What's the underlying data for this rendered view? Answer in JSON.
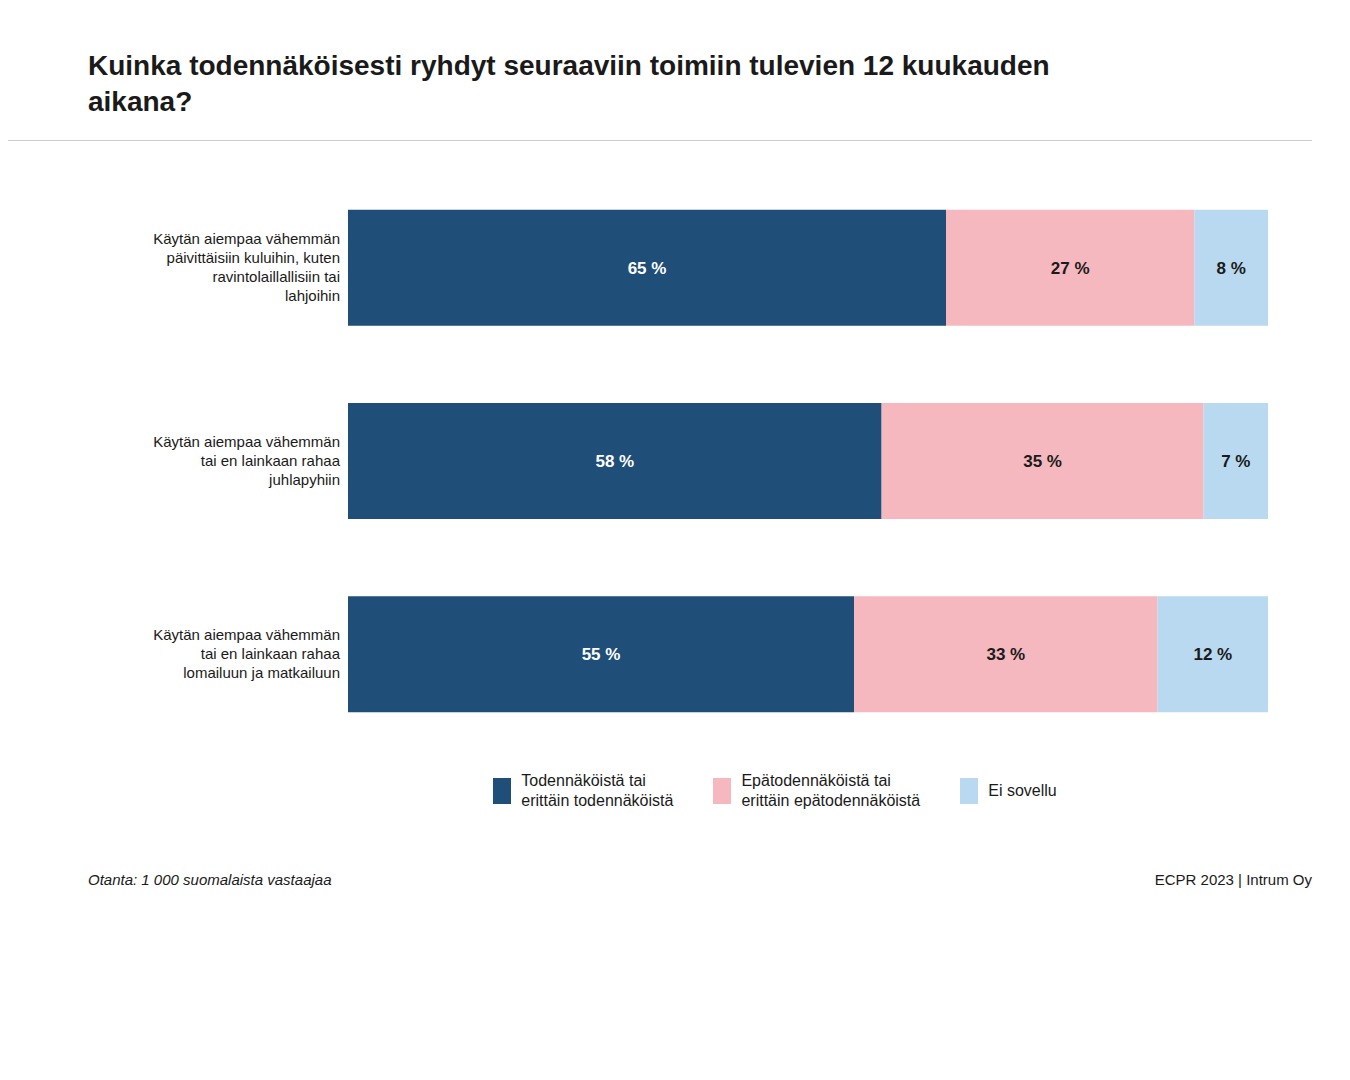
{
  "chart_data": {
    "type": "bar",
    "orientation": "horizontal",
    "stacked": true,
    "title": "Kuinka todennäköisesti ryhdyt seuraaviin toimiin tulevien 12 kuukauden\naikana?",
    "categories": [
      "Käytän aiempaa vähemmän\npäivittäisiin kuluihin, kuten\nravintolaillallisiin tai\nlahjoihin",
      "Käytän aiempaa vähemmän\ntai en lainkaan rahaa\njuhlapyhiin",
      "Käytän aiempaa vähemmän\ntai en lainkaan rahaa\nlomailuun ja matkailuun"
    ],
    "series": [
      {
        "name": "Todennäköistä tai\nerittäin todennäköistä",
        "color": "#1f4e79",
        "values": [
          65,
          58,
          55
        ],
        "value_labels": [
          "65 %",
          "58 %",
          "55 %"
        ]
      },
      {
        "name": "Epätodennäköistä tai\nerittäin epätodennäköistä",
        "color": "#f4b8be",
        "values": [
          27,
          35,
          33
        ],
        "value_labels": [
          "27 %",
          "35 %",
          "33 %"
        ]
      },
      {
        "name": "Ei sovellu",
        "color": "#b8d9f0",
        "values": [
          8,
          7,
          12
        ],
        "value_labels": [
          "8 %",
          "7 %",
          "12 %"
        ]
      }
    ],
    "xlim": [
      0,
      100
    ],
    "data_labels": true,
    "tick_labels": "y",
    "grid": false,
    "legend": "bottom",
    "annotations": [
      "Otanta: 1 000 suomalaista vastaajaa",
      "ECPR 2023 | Intrum Oy"
    ]
  }
}
